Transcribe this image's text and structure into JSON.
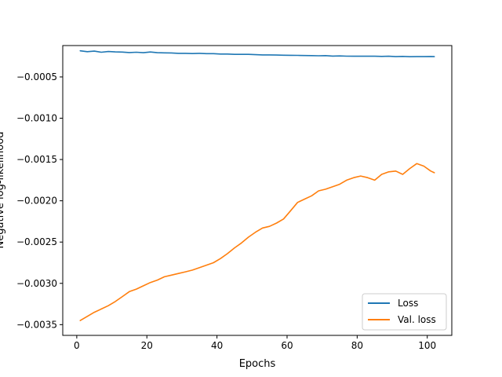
{
  "chart_data": {
    "type": "line",
    "title": "",
    "xlabel": "Epochs",
    "ylabel": "Negative log-likelihood",
    "xlim": [
      -4,
      107
    ],
    "ylim": [
      -0.00363,
      -0.00012
    ],
    "x_ticks": [
      0,
      20,
      40,
      60,
      80,
      100
    ],
    "x_tick_labels": [
      "0",
      "20",
      "40",
      "60",
      "80",
      "100"
    ],
    "y_ticks": [
      -0.0005,
      -0.001,
      -0.0015,
      -0.002,
      -0.0025,
      -0.003,
      -0.0035
    ],
    "y_tick_labels": [
      "−0.0005",
      "−0.0010",
      "−0.0015",
      "−0.0020",
      "−0.0025",
      "−0.0030",
      "−0.0035"
    ],
    "grid": false,
    "legend_position": "lower-right",
    "series": [
      {
        "name": "Loss",
        "color": "#1f77b4",
        "x": [
          1,
          3,
          5,
          7,
          9,
          11,
          13,
          15,
          17,
          19,
          21,
          23,
          25,
          27,
          29,
          31,
          33,
          35,
          37,
          39,
          41,
          43,
          45,
          47,
          49,
          51,
          53,
          55,
          57,
          59,
          61,
          63,
          65,
          67,
          69,
          71,
          73,
          75,
          77,
          79,
          81,
          83,
          85,
          87,
          89,
          91,
          93,
          95,
          97,
          99,
          101,
          102
        ],
        "y": [
          -0.000184,
          -0.000194,
          -0.000188,
          -0.000201,
          -0.000192,
          -0.000197,
          -0.000199,
          -0.000205,
          -0.000201,
          -0.000207,
          -0.000198,
          -0.000207,
          -0.000208,
          -0.000209,
          -0.000214,
          -0.000214,
          -0.000217,
          -0.000214,
          -0.000218,
          -0.000218,
          -0.000223,
          -0.000223,
          -0.000227,
          -0.000227,
          -0.000227,
          -0.00023,
          -0.000233,
          -0.000233,
          -0.000235,
          -0.000237,
          -0.000238,
          -0.000239,
          -0.000241,
          -0.000242,
          -0.000244,
          -0.000242,
          -0.000247,
          -0.000246,
          -0.000248,
          -0.000249,
          -0.000248,
          -0.000249,
          -0.000249,
          -0.000251,
          -0.000249,
          -0.000254,
          -0.000251,
          -0.000255,
          -0.000254,
          -0.000254,
          -0.000252,
          -0.000254
        ]
      },
      {
        "name": "Val. loss",
        "color": "#ff7f0e",
        "x": [
          1,
          3,
          5,
          7,
          9,
          11,
          13,
          15,
          17,
          19,
          21,
          23,
          25,
          27,
          29,
          31,
          33,
          35,
          37,
          39,
          41,
          43,
          45,
          47,
          49,
          51,
          53,
          55,
          57,
          59,
          61,
          63,
          65,
          67,
          69,
          71,
          73,
          75,
          77,
          79,
          81,
          83,
          85,
          87,
          89,
          91,
          93,
          95,
          97,
          99,
          101,
          102
        ],
        "y": [
          -0.00345,
          -0.0034,
          -0.00335,
          -0.00331,
          -0.00327,
          -0.00322,
          -0.00316,
          -0.0031,
          -0.00307,
          -0.00303,
          -0.00299,
          -0.00296,
          -0.00292,
          -0.0029,
          -0.00288,
          -0.00286,
          -0.00284,
          -0.00281,
          -0.00278,
          -0.00275,
          -0.0027,
          -0.00264,
          -0.00257,
          -0.00251,
          -0.00244,
          -0.00238,
          -0.00233,
          -0.00231,
          -0.00227,
          -0.00222,
          -0.00212,
          -0.00202,
          -0.00198,
          -0.00194,
          -0.00188,
          -0.00186,
          -0.00183,
          -0.0018,
          -0.00175,
          -0.00172,
          -0.0017,
          -0.00172,
          -0.00175,
          -0.00168,
          -0.00165,
          -0.00164,
          -0.00168,
          -0.00161,
          -0.00155,
          -0.00158,
          -0.00164,
          -0.00166
        ]
      }
    ]
  }
}
